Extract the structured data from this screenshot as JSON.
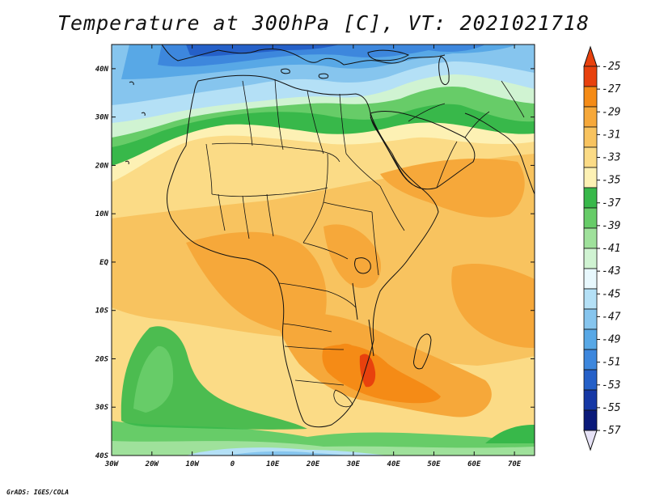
{
  "title": "Temperature at 300hPa [C], VT: 2021021718",
  "credit": "GrADS: IGES/COLA",
  "map": {
    "lon_range": [
      -30,
      75
    ],
    "lat_range": [
      -40,
      45
    ],
    "lat_labels": [
      {
        "lat": 40,
        "text": "40N"
      },
      {
        "lat": 30,
        "text": "30N"
      },
      {
        "lat": 20,
        "text": "20N"
      },
      {
        "lat": 10,
        "text": "10N"
      },
      {
        "lat": 0,
        "text": "EQ"
      },
      {
        "lat": -10,
        "text": "10S"
      },
      {
        "lat": -20,
        "text": "20S"
      },
      {
        "lat": -30,
        "text": "30S"
      },
      {
        "lat": -40,
        "text": "40S"
      }
    ],
    "lon_labels": [
      {
        "lon": -30,
        "text": "30W"
      },
      {
        "lon": -20,
        "text": "20W"
      },
      {
        "lon": -10,
        "text": "10W"
      },
      {
        "lon": 0,
        "text": "0"
      },
      {
        "lon": 10,
        "text": "10E"
      },
      {
        "lon": 20,
        "text": "20E"
      },
      {
        "lon": 30,
        "text": "30E"
      },
      {
        "lon": 40,
        "text": "40E"
      },
      {
        "lon": 50,
        "text": "50E"
      },
      {
        "lon": 60,
        "text": "60E"
      },
      {
        "lon": 70,
        "text": "70E"
      }
    ]
  },
  "colorbar": {
    "labels": [
      "-25",
      "-27",
      "-29",
      "-31",
      "-33",
      "-35",
      "-37",
      "-39",
      "-41",
      "-43",
      "-45",
      "-47",
      "-49",
      "-51",
      "-53",
      "-55",
      "-57"
    ],
    "colors": [
      "#e8410d",
      "#f58b16",
      "#f6a83a",
      "#f8c35f",
      "#fbdb86",
      "#fdf1b4",
      "#38b84a",
      "#67cc68",
      "#9fe19b",
      "#d0f3d2",
      "#e8f8fd",
      "#b4e0f6",
      "#86c5ee",
      "#58a8e6",
      "#3d87dd",
      "#2560c8",
      "#1638a5",
      "#0b1a7a"
    ],
    "top_color": "#e8410d",
    "bottom_color": "#e6e2f6"
  }
}
